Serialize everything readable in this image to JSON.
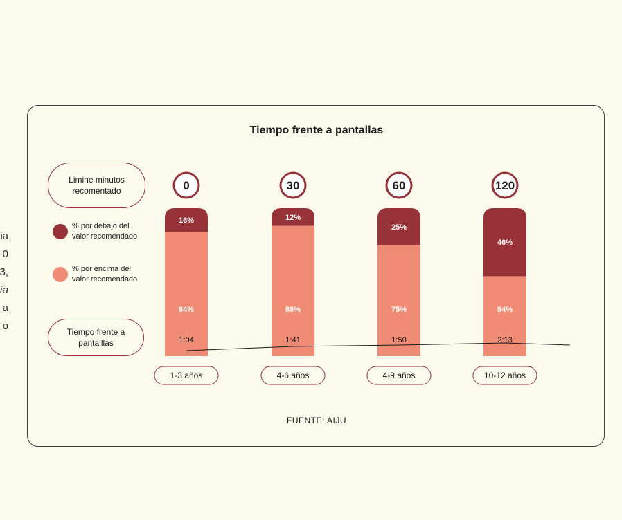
{
  "background_text": [
    "ia",
    "0",
    "3,",
    "ía",
    "a",
    "o"
  ],
  "colors": {
    "below": "#963238",
    "above": "#f08c76",
    "border": "#963238",
    "background": "#fdfbee"
  },
  "legend": {
    "minutes_label": "Limine minutos recomentado",
    "below_label": "% por debajo del valor recomendado",
    "above_label": "% por encima del valor recomendado",
    "time_label": "Tiempo frente a pantalllas"
  },
  "source": "FUENTE: AIJU",
  "chart_data": {
    "type": "bar",
    "title": "Tiempo frente a pantallas",
    "stacked": true,
    "categories": [
      "1-3 años",
      "4-6 años",
      "4-9 años",
      "10-12 años"
    ],
    "recommended_minutes": [
      "0",
      "30",
      "60",
      "120"
    ],
    "series": [
      {
        "name": "% por debajo del valor recomendado",
        "values": [
          16,
          12,
          25,
          46
        ],
        "labels": [
          "16%",
          "12%",
          "25%",
          "46%"
        ]
      },
      {
        "name": "% por encima del valor recomendado",
        "values": [
          84,
          88,
          75,
          54
        ],
        "labels": [
          "84%",
          "88%",
          "75%",
          "54%"
        ]
      }
    ],
    "screen_time": [
      "1:04",
      "1:41",
      "1:50",
      "2:13"
    ],
    "ylim": [
      0,
      100
    ]
  }
}
